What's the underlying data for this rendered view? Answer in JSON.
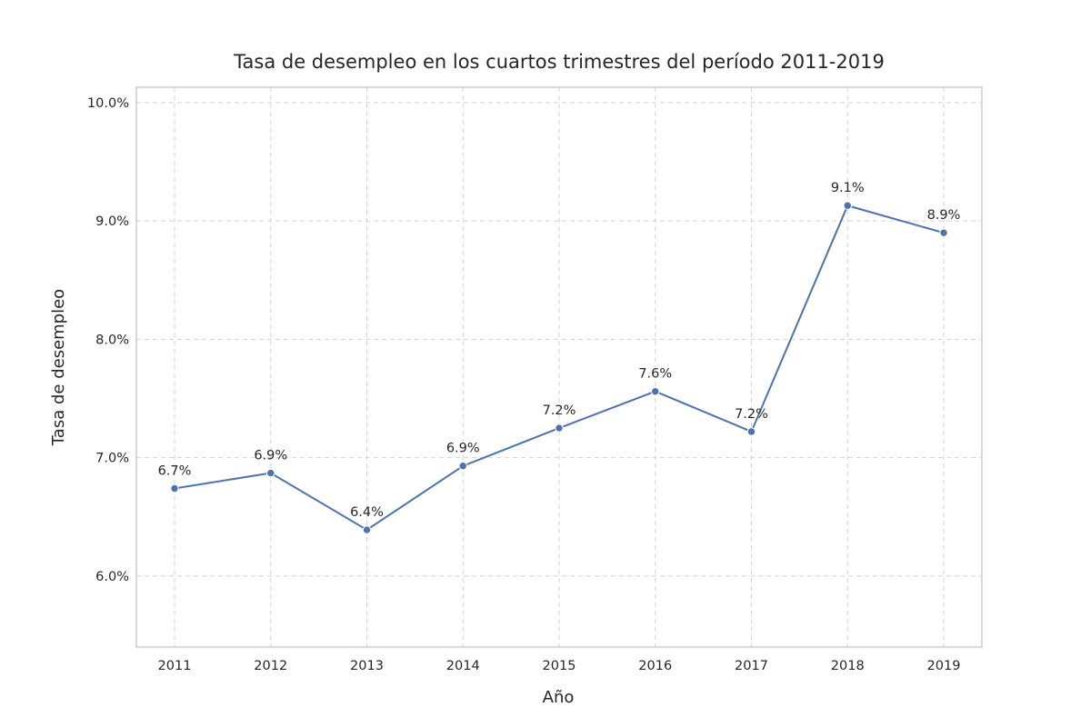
{
  "chart_data": {
    "type": "line",
    "title": "Tasa de desempleo en los cuartos trimestres del período 2011-2019",
    "xlabel": "Año",
    "ylabel": "Tasa de desempleo",
    "categories": [
      "2011",
      "2012",
      "2013",
      "2014",
      "2015",
      "2016",
      "2017",
      "2018",
      "2019"
    ],
    "series": [
      {
        "values": [
          6.74,
          6.87,
          6.39,
          6.93,
          7.25,
          7.56,
          7.22,
          9.13,
          8.9
        ],
        "labels": [
          "6.7%",
          "6.9%",
          "6.4%",
          "6.9%",
          "7.2%",
          "7.6%",
          "7.2%",
          "9.1%",
          "8.9%"
        ],
        "color": "#4c72b0"
      }
    ],
    "ylim": [
      5.4,
      10.13
    ],
    "yticks": [
      6.0,
      7.0,
      8.0,
      9.0,
      10.0
    ],
    "ytick_labels": [
      "6.0%",
      "7.0%",
      "8.0%",
      "9.0%",
      "10.0%"
    ],
    "grid": true,
    "legend": "none"
  }
}
